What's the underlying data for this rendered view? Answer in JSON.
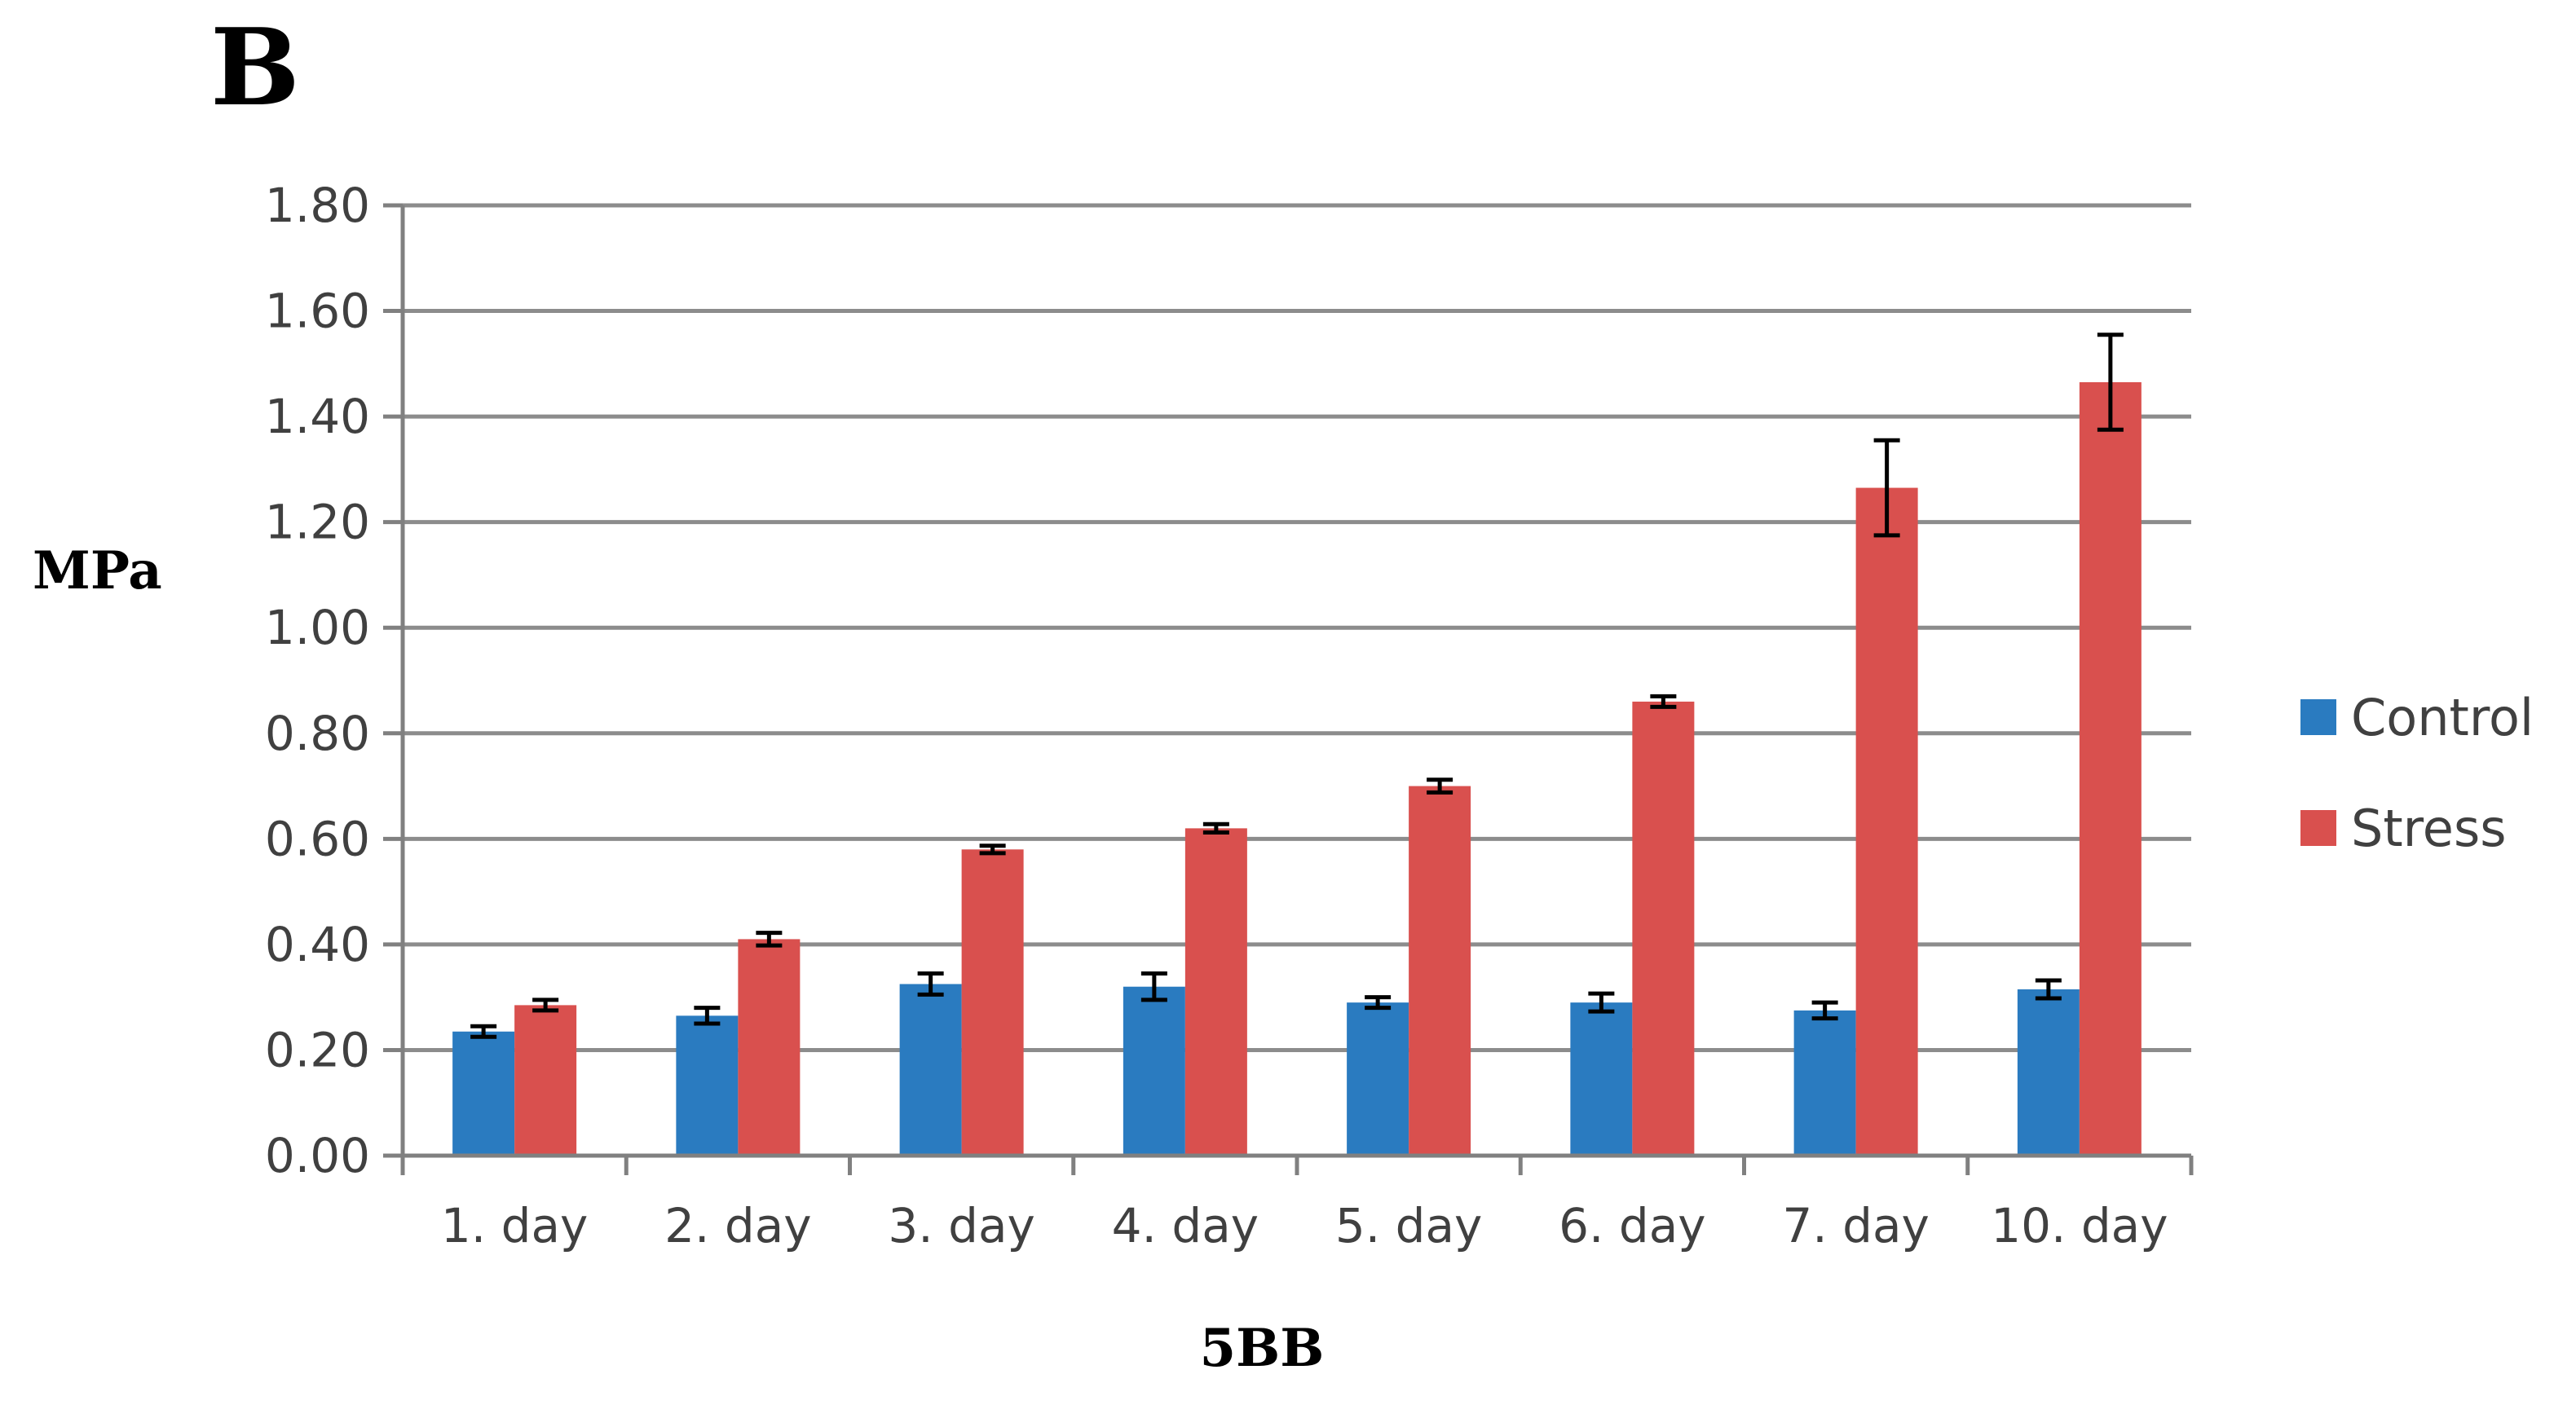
{
  "panel_label": "B",
  "colors": {
    "control": "#2a7bc0",
    "stress": "#d9504e",
    "grid": "#8c8c8c",
    "axis": "#808080",
    "error_bar": "#000000"
  },
  "chart_data": {
    "type": "bar",
    "title": "",
    "xlabel": "5BB",
    "ylabel": "MPa",
    "ylim": [
      0,
      1.8
    ],
    "yticks": [
      "0.00",
      "0.20",
      "0.40",
      "0.60",
      "0.80",
      "1.00",
      "1.20",
      "1.40",
      "1.60",
      "1.80"
    ],
    "grid": true,
    "legend_position": "right",
    "categories": [
      "1. day",
      "2. day",
      "3. day",
      "4. day",
      "5. day",
      "6. day",
      "7. day",
      "10. day"
    ],
    "series": [
      {
        "name": "Control",
        "color": "#2a7bc0",
        "values": [
          0.235,
          0.265,
          0.325,
          0.32,
          0.29,
          0.29,
          0.275,
          0.315
        ],
        "errors": [
          0.01,
          0.015,
          0.02,
          0.025,
          0.01,
          0.017,
          0.015,
          0.017
        ]
      },
      {
        "name": "Stress",
        "color": "#d9504e",
        "values": [
          0.285,
          0.41,
          0.58,
          0.62,
          0.7,
          0.86,
          1.265,
          1.465
        ],
        "errors": [
          0.01,
          0.012,
          0.007,
          0.008,
          0.012,
          0.01,
          0.09,
          0.09
        ]
      }
    ]
  }
}
